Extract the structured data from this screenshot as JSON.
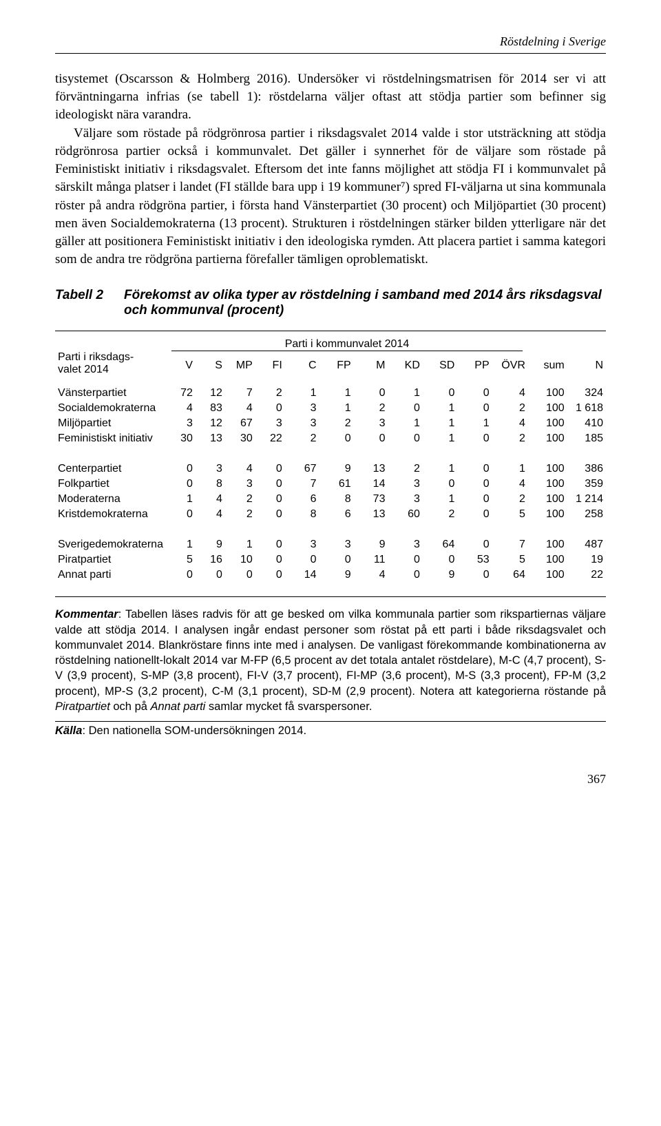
{
  "running_head": "Röstdelning i Sverige",
  "body_text": "tisystemet (Oscarsson & Holmberg 2016). Undersöker vi röstdelningsmatrisen för 2014 ser vi att förväntningarna infrias (se tabell 1): röstdelarna väljer oftast att stödja partier som befinner sig ideologiskt nära varandra.\n\nVäljare som röstade på rödgrönrosa partier i riksdagsvalet 2014 valde i stor utsträckning att stödja rödgrönrosa partier också i kommunvalet. Det gäller i synnerhet för de väljare som röstade på Feministiskt initiativ i riksdagsvalet. Eftersom det inte fanns möjlighet att stödja FI i kommunvalet på särskilt många platser i landet (FI ställde bara upp i 19 kommuner⁷) spred FI-väljarna ut sina kommunala röster på andra rödgröna partier, i första hand Vänsterpartiet (30 procent) och Miljöpartiet (30 procent) men även Socialdemokraterna (13 procent). Strukturen i röstdelningen stärker bilden ytterligare när det gäller att positionera Feministiskt initiativ i den ideologiska rymden. Att placera partiet i samma kategori som de andra tre rödgröna partierna förefaller tämligen oproblematiskt.",
  "table": {
    "label": "Tabell 2",
    "title": "Förekomst av olika typer av röstdelning i samband med 2014 års riksdagsval och kommunval (procent)",
    "over_header": "Parti i kommunvalet 2014",
    "row_header_l1": "Parti i riksdags-",
    "row_header_l2": "valet 2014",
    "columns": [
      "V",
      "S",
      "MP",
      "FI",
      "C",
      "FP",
      "M",
      "KD",
      "SD",
      "PP",
      "ÖVR",
      "sum",
      "N"
    ],
    "groups": [
      {
        "rows": [
          {
            "name": "Vänsterpartiet",
            "v": [
              72,
              12,
              7,
              2,
              1,
              1,
              0,
              1,
              0,
              0,
              4,
              100,
              "324"
            ]
          },
          {
            "name": "Socialdemokraterna",
            "v": [
              4,
              83,
              4,
              0,
              3,
              1,
              2,
              0,
              1,
              0,
              2,
              100,
              "1 618"
            ]
          },
          {
            "name": "Miljöpartiet",
            "v": [
              3,
              12,
              67,
              3,
              3,
              2,
              3,
              1,
              1,
              1,
              4,
              100,
              "410"
            ]
          },
          {
            "name": "Feministiskt initiativ",
            "v": [
              30,
              13,
              30,
              22,
              2,
              0,
              0,
              0,
              1,
              0,
              2,
              100,
              "185"
            ]
          }
        ]
      },
      {
        "rows": [
          {
            "name": "Centerpartiet",
            "v": [
              0,
              3,
              4,
              0,
              67,
              9,
              13,
              2,
              1,
              0,
              1,
              100,
              "386"
            ]
          },
          {
            "name": "Folkpartiet",
            "v": [
              0,
              8,
              3,
              0,
              7,
              61,
              14,
              3,
              0,
              0,
              4,
              100,
              "359"
            ]
          },
          {
            "name": "Moderaterna",
            "v": [
              1,
              4,
              2,
              0,
              6,
              8,
              73,
              3,
              1,
              0,
              2,
              100,
              "1 214"
            ]
          },
          {
            "name": "Kristdemokraterna",
            "v": [
              0,
              4,
              2,
              0,
              8,
              6,
              13,
              60,
              2,
              0,
              5,
              100,
              "258"
            ]
          }
        ]
      },
      {
        "rows": [
          {
            "name": "Sverigedemokraterna",
            "v": [
              1,
              9,
              1,
              0,
              3,
              3,
              9,
              3,
              64,
              0,
              7,
              100,
              "487"
            ]
          },
          {
            "name": "Piratpartiet",
            "v": [
              5,
              16,
              10,
              0,
              0,
              0,
              11,
              0,
              0,
              53,
              5,
              100,
              "19"
            ]
          },
          {
            "name": "Annat parti",
            "v": [
              0,
              0,
              0,
              0,
              14,
              9,
              4,
              0,
              9,
              0,
              64,
              100,
              "22"
            ]
          }
        ]
      }
    ]
  },
  "comment_lead": "Kommentar",
  "comment_text": ": Tabellen läses radvis för att ge besked om vilka kommunala partier som rikspartiernas väljare valde att stödja 2014. I analysen ingår endast personer som röstat på ett parti i både riksdagsvalet och kommunvalet 2014. Blankröstare finns inte med i analysen. De vanligast förekommande kombinationerna av röstdelning nationellt-lokalt 2014 var M-FP (6,5 procent av det totala antalet röstdelare), M-C (4,7 procent), S-V (3,9 procent), S-MP (3,8 procent), FI-V (3,7 procent), FI-MP (3,6 procent), M-S (3,3 procent), FP-M (3,2 procent), MP-S (3,2 procent), C-M (3,1 procent), SD-M (2,9 procent). Notera att kategorierna röstande på ",
  "comment_ital1": "Piratpartiet",
  "comment_mid": " och på ",
  "comment_ital2": "Annat parti",
  "comment_tail": " samlar mycket få svarspersoner.",
  "source_lead": "Källa",
  "source_text": ": Den nationella SOM-undersökningen 2014.",
  "page_number": "367"
}
